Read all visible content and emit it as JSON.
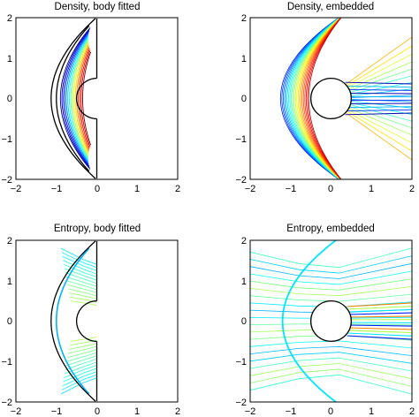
{
  "figure": {
    "panels": [
      {
        "title": "Density, body fitted"
      },
      {
        "title": "Density, embedded"
      },
      {
        "title": "Entropy, body fitted"
      },
      {
        "title": "Entropy, embedded"
      }
    ]
  },
  "chart_data": [
    {
      "type": "contour",
      "title": "Density, body fitted",
      "xlim": [
        -2,
        2
      ],
      "ylim": [
        -2,
        2
      ],
      "xticks": [
        "−2",
        "−1",
        "0",
        "1",
        "2"
      ],
      "yticks": [
        "2",
        "1",
        "0",
        "−1",
        "−2"
      ],
      "colors": {
        "shock": "#000000",
        "body": "#000000",
        "contours": "jet"
      }
    },
    {
      "type": "contour",
      "title": "Density, embedded",
      "xlim": [
        -2,
        2
      ],
      "ylim": [
        -2,
        2
      ],
      "xticks": [
        "−2",
        "−1",
        "0",
        "1",
        "2"
      ],
      "yticks": [
        "2",
        "1",
        "0",
        "−1",
        "−2"
      ],
      "colors": {
        "body": "#000000",
        "contours": "jet"
      }
    },
    {
      "type": "contour",
      "title": "Entropy, body fitted",
      "xlim": [
        -2,
        2
      ],
      "ylim": [
        -2,
        2
      ],
      "xticks": [
        "−2",
        "−1",
        "0",
        "1",
        "2"
      ],
      "yticks": [
        "2",
        "1",
        "0",
        "−1",
        "−2"
      ],
      "colors": {
        "shock": "#000000",
        "body": "#000000",
        "contours": "jet"
      }
    },
    {
      "type": "contour",
      "title": "Entropy, embedded",
      "xlim": [
        -2,
        2
      ],
      "ylim": [
        -2,
        2
      ],
      "xticks": [
        "−2",
        "−1",
        "0",
        "1",
        "2"
      ],
      "yticks": [
        "2",
        "1",
        "0",
        "−1",
        "−2"
      ],
      "colors": {
        "body": "#000000",
        "contours": "jet"
      }
    }
  ]
}
